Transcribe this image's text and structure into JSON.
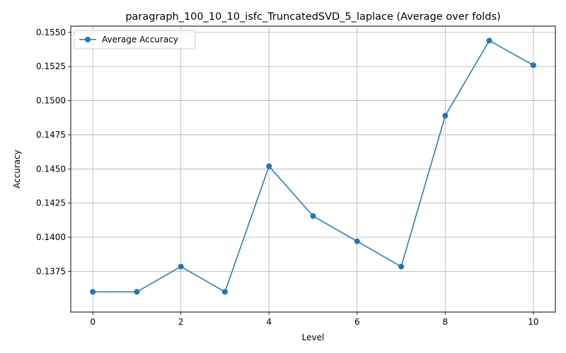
{
  "chart_data": {
    "type": "line",
    "title": "paragraph_100_10_10_isfc_TruncatedSVD_5_laplace (Average over folds)",
    "xlabel": "Level",
    "ylabel": "Accuracy",
    "x": [
      0,
      1,
      2,
      3,
      4,
      5,
      6,
      7,
      8,
      9,
      10
    ],
    "series": [
      {
        "name": "Average Accuracy",
        "color": "#1f77b4",
        "marker": "circle",
        "values": [
          0.136,
          0.136,
          0.13785,
          0.136,
          0.1452,
          0.14155,
          0.1397,
          0.13785,
          0.1489,
          0.1544,
          0.1526
        ]
      }
    ],
    "xlim": [
      -0.5,
      10.5
    ],
    "ylim": [
      0.13452,
      0.15546
    ],
    "xticks": [
      0,
      2,
      4,
      6,
      8,
      10
    ],
    "xtick_labels": [
      "0",
      "2",
      "4",
      "6",
      "8",
      "10"
    ],
    "yticks": [
      0.1375,
      0.14,
      0.1425,
      0.145,
      0.1475,
      0.15,
      0.1525,
      0.155
    ],
    "ytick_labels": [
      "0.1375",
      "0.1400",
      "0.1425",
      "0.1450",
      "0.1475",
      "0.1500",
      "0.1525",
      "0.1550"
    ],
    "grid": true,
    "legend_position": "upper left",
    "colors": {
      "grid": "#b0b0b0",
      "axes": "#000000"
    }
  }
}
